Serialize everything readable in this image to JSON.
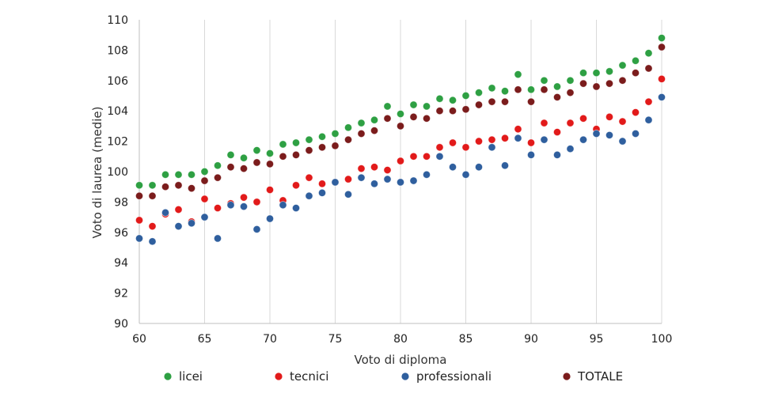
{
  "chart_data": {
    "type": "scatter",
    "title": "",
    "xlabel": "Voto di diploma",
    "ylabel": "Voto di laurea (medie)",
    "xlim": [
      60,
      100
    ],
    "ylim": [
      90,
      110
    ],
    "xticks": [
      60,
      65,
      70,
      75,
      80,
      85,
      90,
      95,
      100
    ],
    "yticks": [
      90,
      92,
      94,
      96,
      98,
      100,
      102,
      104,
      106,
      108,
      110
    ],
    "grid": "vertical",
    "legend_position": "bottom",
    "x": [
      60,
      61,
      62,
      63,
      64,
      65,
      66,
      67,
      68,
      69,
      70,
      71,
      72,
      73,
      74,
      75,
      76,
      77,
      78,
      79,
      80,
      81,
      82,
      83,
      84,
      85,
      86,
      87,
      88,
      89,
      90,
      91,
      92,
      93,
      94,
      95,
      96,
      97,
      98,
      99,
      100
    ],
    "series": [
      {
        "name": "licei",
        "color": "#2ea043",
        "values": [
          99.1,
          99.1,
          99.8,
          99.8,
          99.8,
          100.0,
          100.4,
          101.1,
          100.9,
          101.4,
          101.2,
          101.8,
          101.9,
          102.1,
          102.3,
          102.5,
          102.9,
          103.2,
          103.4,
          104.3,
          103.8,
          104.4,
          104.3,
          104.8,
          104.7,
          105.0,
          105.2,
          105.5,
          105.3,
          106.4,
          105.4,
          106.0,
          105.6,
          106.0,
          106.5,
          106.5,
          106.6,
          107.0,
          107.3,
          107.8,
          108.8
        ]
      },
      {
        "name": "tecnici",
        "color": "#e21a1a",
        "values": [
          96.8,
          96.4,
          97.2,
          97.5,
          96.7,
          98.2,
          97.6,
          97.9,
          98.3,
          98.0,
          98.8,
          98.1,
          99.1,
          99.6,
          99.2,
          99.3,
          99.5,
          100.2,
          100.3,
          100.1,
          100.7,
          101.0,
          101.0,
          101.6,
          101.9,
          101.6,
          102.0,
          102.1,
          102.2,
          102.8,
          101.9,
          103.2,
          102.6,
          103.2,
          103.5,
          102.8,
          103.6,
          103.3,
          103.9,
          104.6,
          106.1
        ]
      },
      {
        "name": "professionali",
        "color": "#2f5f9e",
        "values": [
          95.6,
          95.4,
          97.3,
          96.4,
          96.6,
          97.0,
          95.6,
          97.8,
          97.7,
          96.2,
          96.9,
          97.8,
          97.6,
          98.4,
          98.6,
          99.3,
          98.5,
          99.6,
          99.2,
          99.5,
          99.3,
          99.4,
          99.8,
          101.0,
          100.3,
          99.8,
          100.3,
          101.6,
          100.4,
          102.2,
          101.1,
          102.1,
          101.1,
          101.5,
          102.1,
          102.5,
          102.4,
          102.0,
          102.5,
          103.4,
          104.9
        ]
      },
      {
        "name": "TOTALE",
        "color": "#7b1c1c",
        "values": [
          98.4,
          98.4,
          99.0,
          99.1,
          98.9,
          99.4,
          99.6,
          100.3,
          100.2,
          100.6,
          100.5,
          101.0,
          101.1,
          101.4,
          101.6,
          101.7,
          102.1,
          102.5,
          102.7,
          103.5,
          103.0,
          103.6,
          103.5,
          104.0,
          104.0,
          104.1,
          104.4,
          104.6,
          104.6,
          105.4,
          104.6,
          105.4,
          104.9,
          105.2,
          105.8,
          105.6,
          105.8,
          106.0,
          106.5,
          106.8,
          108.2
        ]
      }
    ]
  }
}
